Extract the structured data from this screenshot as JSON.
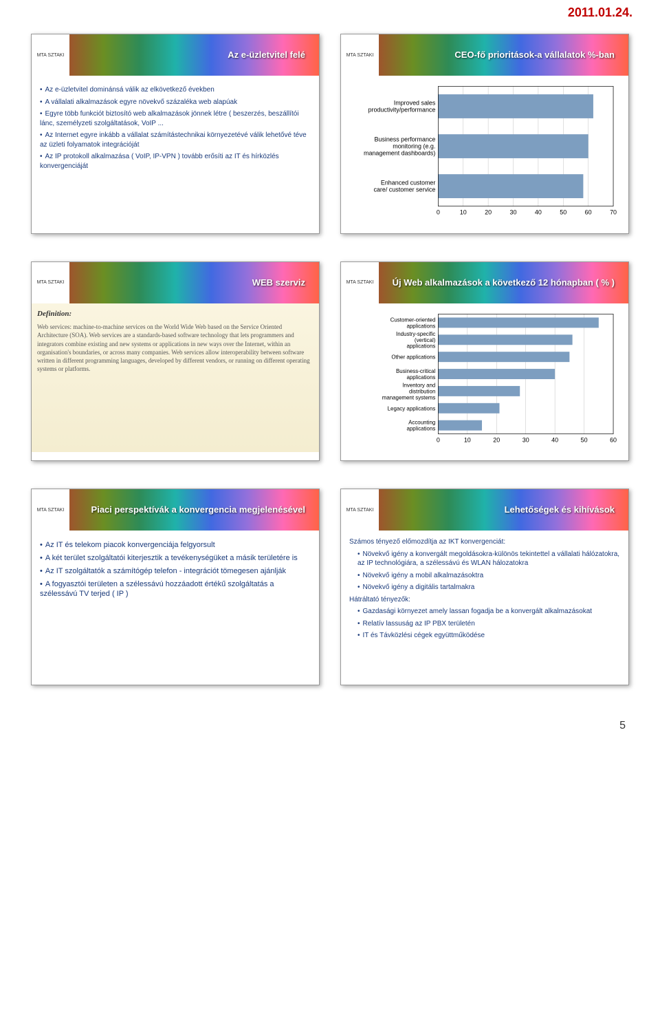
{
  "header_date": "2011.01.24.",
  "page_number": "5",
  "slide1": {
    "title": "Az e-üzletvitel felé",
    "bullets": [
      "Az e-üzletvitel dominánsá válik az elkövetkező években",
      "A vállalati alkalmazások egyre növekvő százaléka web alapúak",
      "Egyre több funkciót biztosító web alkalmazások jönnek létre ( beszerzés, beszállítói lánc, személyzeti szolgáltatások, VoIP ...",
      "Az Internet egyre inkább a vállalat számítástechnikai környezetévé válik lehetővé téve az üzleti folyamatok integrációját",
      "Az IP protokoll alkalmazása ( VoIP, IP-VPN ) tovább erősíti az IT és hírközlés konvergenciáját"
    ]
  },
  "slide2": {
    "title": "CEO-fő prioritások-a vállalatok %-ban",
    "chart": {
      "type": "bar",
      "categories": [
        "Improved sales productivity/performance",
        "Business performance monitoring (e.g. management dashboards)",
        "Enhanced customer care/ customer service"
      ],
      "values": [
        62,
        60,
        58
      ],
      "xlim": [
        0,
        70
      ],
      "xtick_step": 10,
      "bar_color": "#7d9ec0",
      "bg_color": "#ffffff",
      "grid_color": "#c0c0c0",
      "label_fontsize": 9,
      "tick_fontsize": 9
    }
  },
  "slide3": {
    "title": "WEB szerviz",
    "def_title": "Definition:",
    "def_body": "Web services: machine-to-machine services on the World Wide Web based on the Service Oriented Architecture (SOA). Web services are a standards-based software technology that lets programmers and integrators combine existing and new systems or applications in new ways over the Internet, within an organisation's boundaries, or across many companies. Web services allow interoperability between software written in different programming languages, developed by different vendors, or running on different operating systems or platforms."
  },
  "slide4": {
    "title": "Új Web alkalmazások a következő 12 hónapban ( % )",
    "chart": {
      "type": "bar",
      "categories": [
        "Customer-oriented applications",
        "Industry-specific (vertical) applications",
        "Other applications",
        "Business-critical applications",
        "Inventory and distribution management systems",
        "Legacy applications",
        "Accounting applications"
      ],
      "values": [
        55,
        46,
        45,
        40,
        28,
        21,
        15
      ],
      "xlim": [
        0,
        60
      ],
      "xtick_step": 10,
      "bar_color": "#7d9ec0",
      "bg_color": "#ffffff",
      "grid_color": "#c0c0c0",
      "label_fontsize": 8,
      "tick_fontsize": 9
    }
  },
  "slide5": {
    "title": "Piaci perspektívák a konvergencia megjelenésével",
    "bullets": [
      "Az IT és telekom piacok konvergenciája felgyorsult",
      "A két terület szolgáltatói kiterjesztik a tevékenységüket a másik területére is",
      "Az IT szolgáltatók a számítógép telefon - integrációt tömegesen ajánlják",
      "A fogyasztói területen a szélessávú hozzáadott értékű szolgáltatás a szélessávú TV terjed ( IP )"
    ]
  },
  "slide6": {
    "title": "Lehetőségek és kihívások",
    "intro": "Számos tényező előmozdítja az IKT konvergenciát:",
    "sub_bullets1": [
      "Növekvő igény a konvergált megoldásokra-különös tekintettel a vállalati hálózatokra, az IP technológiára, a szélessávú és WLAN hálozatokra",
      "Növekvő igény a mobil alkalmazásoktra",
      "Növekvő igény a digitális tartalmakra"
    ],
    "mid": "Hátráltató tényezők:",
    "sub_bullets2": [
      "Gazdasági környezet amely lassan fogadja be a konvergált alkalmazásokat",
      "Relatív lassuság az IP PBX területén",
      "IT és Távközlési cégek együttműködése"
    ]
  }
}
